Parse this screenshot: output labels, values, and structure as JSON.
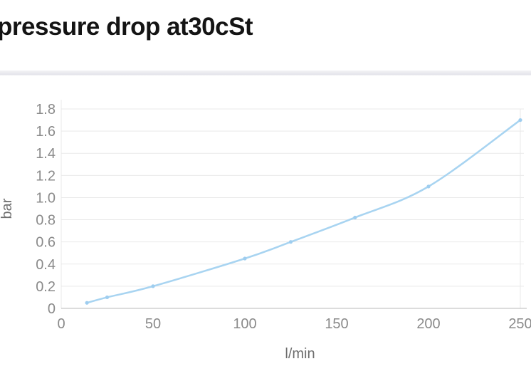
{
  "header": {
    "title": "pressure drop at30cSt"
  },
  "chart_data": {
    "type": "line",
    "title": "pressure drop at30cSt",
    "xlabel": "l/min",
    "ylabel": "bar",
    "x": [
      14,
      25,
      50,
      100,
      125,
      160,
      200,
      250
    ],
    "y": [
      0.05,
      0.1,
      0.2,
      0.45,
      0.6,
      0.82,
      1.1,
      1.7
    ],
    "xlim": [
      0,
      250
    ],
    "ylim": [
      0,
      1.8
    ],
    "x_ticks": [
      0,
      50,
      100,
      150,
      200,
      250
    ],
    "y_ticks": [
      0,
      0.2,
      0.4,
      0.6,
      0.8,
      1.0,
      1.2,
      1.4,
      1.6,
      1.8
    ],
    "grid": true,
    "legend": false,
    "markers": true,
    "colors": {
      "line": "#a8d4f1",
      "marker": "#9ecdef",
      "grid": "#e9e9e9",
      "axis_line": "#c6c6c6",
      "tick_label": "#8a8a8a",
      "axis_title": "#6e6e6e",
      "title": "#141414"
    }
  }
}
